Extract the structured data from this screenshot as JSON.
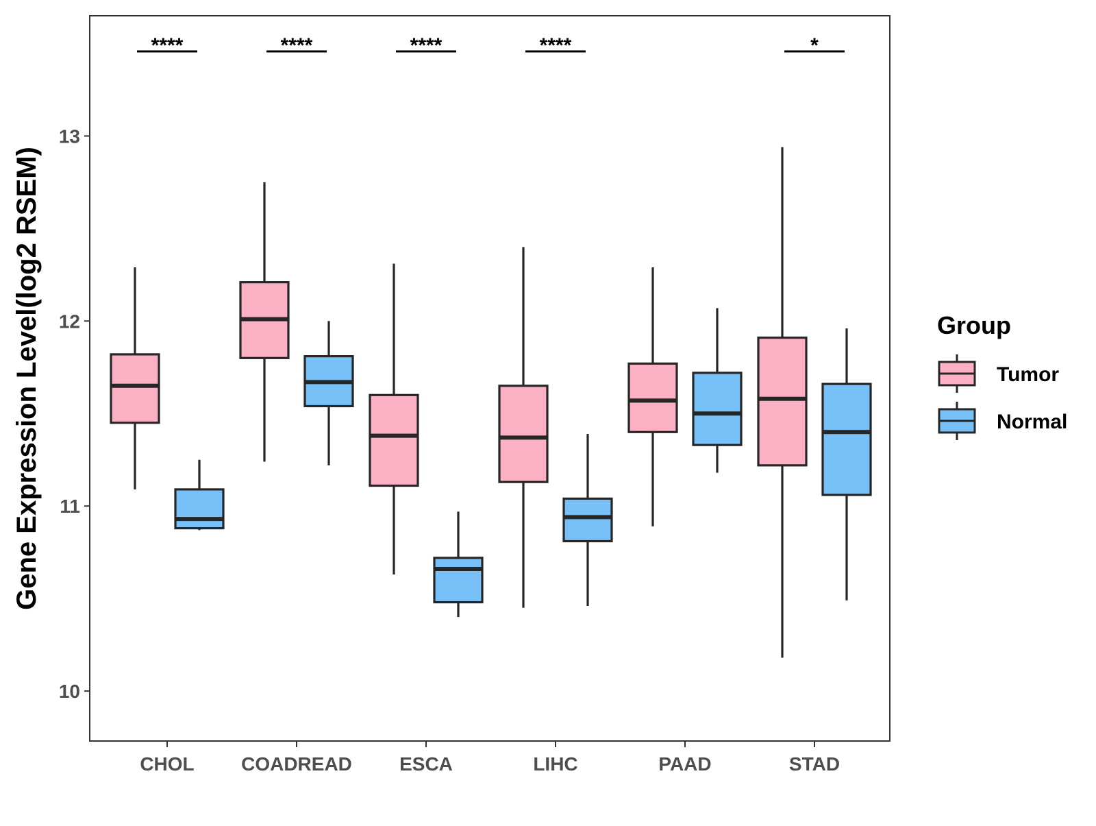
{
  "chart_data": {
    "type": "boxplot",
    "title": "",
    "xlabel": "",
    "ylabel": "Gene Expression Level(log2 RSEM)",
    "ylim": [
      9.73,
      13.65
    ],
    "yticks": [
      10,
      11,
      12,
      13
    ],
    "categories": [
      "CHOL",
      "COADREAD",
      "ESCA",
      "LIHC",
      "PAAD",
      "STAD"
    ],
    "grid": false,
    "legend": {
      "title": "Group",
      "position": "right",
      "entries": [
        "Tumor",
        "Normal"
      ]
    },
    "series": [
      {
        "name": "Tumor",
        "color": "#FBB1C3",
        "boxes": [
          {
            "category": "CHOL",
            "min": 11.09,
            "q1": 11.45,
            "median": 11.65,
            "q3": 11.82,
            "max": 12.29
          },
          {
            "category": "COADREAD",
            "min": 11.24,
            "q1": 11.8,
            "median": 12.01,
            "q3": 12.21,
            "max": 12.75
          },
          {
            "category": "ESCA",
            "min": 10.63,
            "q1": 11.11,
            "median": 11.38,
            "q3": 11.6,
            "max": 12.31
          },
          {
            "category": "LIHC",
            "min": 10.45,
            "q1": 11.13,
            "median": 11.37,
            "q3": 11.65,
            "max": 12.4
          },
          {
            "category": "PAAD",
            "min": 10.89,
            "q1": 11.4,
            "median": 11.57,
            "q3": 11.77,
            "max": 12.29
          },
          {
            "category": "STAD",
            "min": 10.18,
            "q1": 11.22,
            "median": 11.58,
            "q3": 11.91,
            "max": 12.94
          }
        ]
      },
      {
        "name": "Normal",
        "color": "#77C0F8",
        "boxes": [
          {
            "category": "CHOL",
            "min": 10.87,
            "q1": 10.88,
            "median": 10.93,
            "q3": 11.09,
            "max": 11.25
          },
          {
            "category": "COADREAD",
            "min": 11.22,
            "q1": 11.54,
            "median": 11.67,
            "q3": 11.81,
            "max": 12.0
          },
          {
            "category": "ESCA",
            "min": 10.4,
            "q1": 10.48,
            "median": 10.66,
            "q3": 10.72,
            "max": 10.97
          },
          {
            "category": "LIHC",
            "min": 10.46,
            "q1": 10.81,
            "median": 10.94,
            "q3": 11.04,
            "max": 11.39
          },
          {
            "category": "PAAD",
            "min": 11.18,
            "q1": 11.33,
            "median": 11.5,
            "q3": 11.72,
            "max": 12.07
          },
          {
            "category": "STAD",
            "min": 10.49,
            "q1": 11.06,
            "median": 11.4,
            "q3": 11.66,
            "max": 11.96
          }
        ]
      }
    ],
    "significance": [
      {
        "category": "CHOL",
        "label": "****"
      },
      {
        "category": "COADREAD",
        "label": "****"
      },
      {
        "category": "ESCA",
        "label": "****"
      },
      {
        "category": "LIHC",
        "label": "****"
      },
      {
        "category": "PAAD",
        "label": ""
      },
      {
        "category": "STAD",
        "label": "*"
      }
    ],
    "colors": {
      "tumor": "#FBB1C3",
      "normal": "#77C0F8",
      "outline": "#262626",
      "axis": "#333333"
    }
  }
}
